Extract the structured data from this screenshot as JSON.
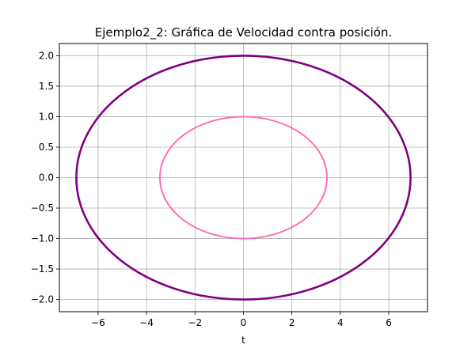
{
  "chart_data": {
    "type": "line",
    "title": "Ejemplo2_2: Gráfica de Velocidad contra posición.",
    "xlabel": "t",
    "ylabel": "",
    "xlim": [
      -7.6,
      7.6
    ],
    "ylim": [
      -2.2,
      2.2
    ],
    "xticks": [
      -6,
      -4,
      -2,
      0,
      2,
      4,
      6
    ],
    "xtick_labels": [
      "−6",
      "−4",
      "−2",
      "0",
      "2",
      "4",
      "6"
    ],
    "yticks": [
      -2.0,
      -1.5,
      -1.0,
      -0.5,
      0.0,
      0.5,
      1.0,
      1.5,
      2.0
    ],
    "ytick_labels": [
      "−2.0",
      "−1.5",
      "−1.0",
      "−0.5",
      "0.0",
      "0.5",
      "1.0",
      "1.5",
      "2.0"
    ],
    "grid": true,
    "legend": "none",
    "series": [
      {
        "color": "#800080",
        "shape": "ellipse",
        "x_amplitude": 6.9,
        "y_amplitude": 2.0,
        "x": [
          6.9,
          6.67,
          5.98,
          4.88,
          3.45,
          1.79,
          0.0,
          -1.79,
          -3.45,
          -4.88,
          -5.98,
          -6.67,
          -6.9,
          -6.67,
          -5.98,
          -4.88,
          -3.45,
          -1.79,
          0.0,
          1.79,
          3.45,
          4.88,
          5.98,
          6.67,
          6.9
        ],
        "y": [
          0.0,
          0.52,
          1.0,
          1.41,
          1.73,
          1.93,
          2.0,
          1.93,
          1.73,
          1.41,
          1.0,
          0.52,
          0.0,
          -0.52,
          -1.0,
          -1.41,
          -1.73,
          -1.93,
          -2.0,
          -1.93,
          -1.73,
          -1.41,
          -1.0,
          -0.52,
          0.0
        ]
      },
      {
        "color": "#ff69b4",
        "shape": "ellipse",
        "x_amplitude": 3.45,
        "y_amplitude": 1.0,
        "x": [
          3.45,
          3.33,
          2.99,
          2.44,
          1.73,
          0.89,
          0.0,
          -0.89,
          -1.73,
          -2.44,
          -2.99,
          -3.33,
          -3.45,
          -3.33,
          -2.99,
          -2.44,
          -1.73,
          -0.89,
          0.0,
          0.89,
          1.73,
          2.44,
          2.99,
          3.33,
          3.45
        ],
        "y": [
          0.0,
          0.26,
          0.5,
          0.71,
          0.87,
          0.97,
          1.0,
          0.97,
          0.87,
          0.71,
          0.5,
          0.26,
          0.0,
          -0.26,
          -0.5,
          -0.71,
          -0.87,
          -0.97,
          -1.0,
          -0.97,
          -0.87,
          -0.71,
          -0.5,
          -0.26,
          0.0
        ]
      }
    ]
  }
}
